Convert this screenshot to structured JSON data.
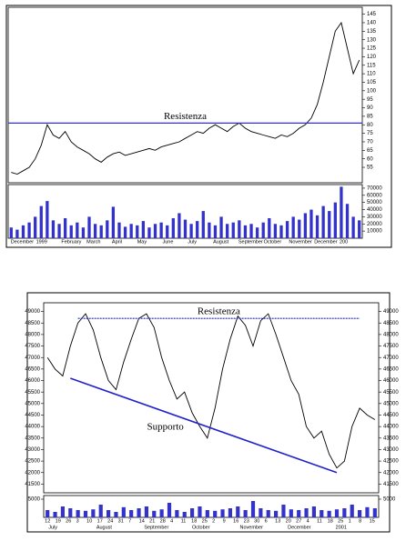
{
  "chart_data": [
    {
      "type": "line",
      "color": "#000000",
      "volume_color": "#3333cc",
      "line_color": "#3333cc",
      "values": [
        52,
        51,
        53,
        55,
        60,
        68,
        80,
        74,
        72,
        76,
        70,
        67,
        65,
        63,
        60,
        58,
        61,
        63,
        64,
        62,
        63,
        64,
        65,
        66,
        65,
        67,
        68,
        69,
        70,
        72,
        74,
        76,
        75,
        78,
        80,
        78,
        76,
        79,
        81,
        78,
        76,
        75,
        74,
        73,
        72,
        74,
        73,
        75,
        78,
        80,
        84,
        92,
        105,
        120,
        135,
        140,
        125,
        110,
        118
      ],
      "volume": [
        15000,
        12000,
        18000,
        22000,
        30000,
        45000,
        52000,
        25000,
        20000,
        28000,
        18000,
        22000,
        15000,
        30000,
        20000,
        18000,
        25000,
        44000,
        22000,
        16000,
        20000,
        18000,
        24000,
        15000,
        20000,
        22000,
        18000,
        28000,
        35000,
        26000,
        20000,
        24000,
        38000,
        22000,
        18000,
        30000,
        20000,
        22000,
        25000,
        18000,
        20000,
        15000,
        22000,
        28000,
        20000,
        18000,
        24000,
        30000,
        26000,
        35000,
        40000,
        32000,
        45000,
        38000,
        50000,
        72000,
        48000,
        30000,
        25000
      ],
      "ylim": [
        47,
        148
      ],
      "yticks": [
        55,
        60,
        65,
        70,
        75,
        80,
        85,
        90,
        95,
        100,
        105,
        110,
        115,
        120,
        125,
        130,
        135,
        140,
        145
      ],
      "volume_lim": [
        0,
        75000
      ],
      "volume_ticks": [
        10000,
        20000,
        30000,
        40000,
        50000,
        60000,
        70000
      ],
      "x_labels": [
        [
          "December",
          "1999",
          "February",
          "March",
          "April",
          "May",
          "June",
          "July",
          "August",
          "September",
          "October",
          "November",
          "December",
          "200"
        ]
      ],
      "annotations": [
        {
          "text": "Resistenza",
          "value": 81
        }
      ]
    },
    {
      "type": "line",
      "color": "#000000",
      "volume_color": "#3333cc",
      "line_color": "#2222cc",
      "values": [
        47000,
        46500,
        46200,
        47500,
        48500,
        48900,
        48200,
        47000,
        46000,
        45600,
        46800,
        47800,
        48700,
        48900,
        48300,
        47000,
        46000,
        45200,
        45500,
        44600,
        44000,
        43500,
        44800,
        46500,
        47800,
        48800,
        48400,
        47500,
        48600,
        48900,
        48000,
        47000,
        46000,
        45400,
        44000,
        43500,
        43800,
        42800,
        42200,
        42500,
        44000,
        44800,
        44500,
        44300
      ],
      "volume": [
        2000,
        1500,
        3000,
        2500,
        2000,
        1800,
        2200,
        3500,
        2000,
        1500,
        2800,
        2000,
        2500,
        3000,
        1800,
        2200,
        4000,
        2000,
        1500,
        2500,
        3000,
        2000,
        1800,
        2200,
        2500,
        3000,
        2000,
        4500,
        2500,
        2000,
        1800,
        3500,
        2200,
        2000,
        2500,
        3000,
        2000,
        1800,
        2200,
        2500,
        3500,
        2000,
        2800,
        2500
      ],
      "ylim": [
        41200,
        49300
      ],
      "yticks": [
        41500,
        42000,
        42500,
        43000,
        43500,
        44000,
        44500,
        45000,
        45500,
        46000,
        46500,
        47000,
        47500,
        48000,
        48500,
        49000
      ],
      "volume_lim": [
        0,
        6000
      ],
      "volume_ticks": [
        5000
      ],
      "x_labels": [
        [
          "12",
          "19",
          "26",
          "3",
          "10",
          "17",
          "24",
          "31",
          "7",
          "14",
          "21",
          "28",
          "4",
          "11",
          "18",
          "25",
          "2",
          "9",
          "16",
          "23",
          "30",
          "6",
          "13",
          "20",
          "27",
          "4",
          "11",
          "18",
          "25",
          "1",
          "8",
          "15"
        ],
        [
          "July",
          "August",
          "September",
          "October",
          "November",
          "December",
          "2001"
        ]
      ],
      "annotations": [
        {
          "text": "Resistenza",
          "value": 48700,
          "from": 4,
          "to": 41
        },
        {
          "text": "Supporto",
          "from": [
            3,
            46100
          ],
          "to": [
            38,
            42000
          ]
        }
      ]
    }
  ]
}
